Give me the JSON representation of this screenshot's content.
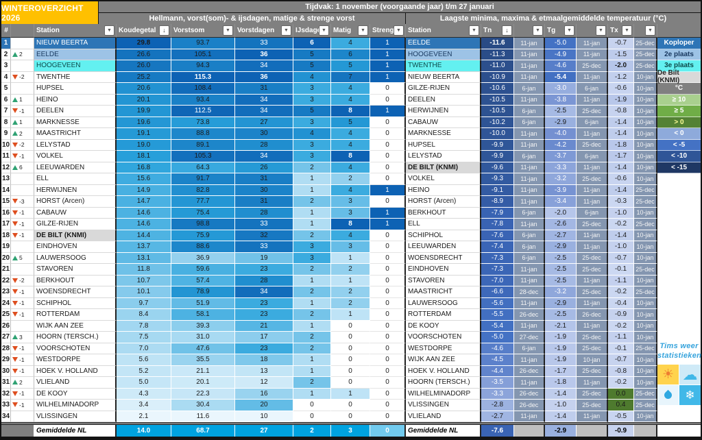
{
  "title": "WINTEROVERZICHT 2026",
  "period_bar": "Tijdvak: 1 november (voorgaande jaar) t/m 27 januari",
  "left": {
    "section_title": "Hellmann, vorst(som)- & ijsdagen, matige & strenge vorst",
    "columns": [
      {
        "label": "#",
        "btn": null
      },
      {
        "label": "",
        "btn": null
      },
      {
        "label": "Station",
        "btn": "filter"
      },
      {
        "label": "Koudegetal",
        "btn": "sort"
      },
      {
        "label": "Vorstsom",
        "btn": "filter"
      },
      {
        "label": "Vorstdagen",
        "btn": "filter"
      },
      {
        "label": "IJsdagen",
        "btn": "filter"
      },
      {
        "label": "Matig",
        "btn": "filter"
      },
      {
        "label": "Streng",
        "btn": "filter"
      }
    ],
    "rows": [
      {
        "rank": 1,
        "change": null,
        "station": "NIEUW BEERTA",
        "koudegetal": 29.8,
        "vorstsom": 93.7,
        "vorstdagen": 33,
        "ijsdagen": 6,
        "matig": 4,
        "streng": 1,
        "hl": 1
      },
      {
        "rank": 2,
        "change": 2,
        "station": "EELDE",
        "koudegetal": 26.6,
        "vorstsom": 105.1,
        "vorstdagen": 36,
        "ijsdagen": 5,
        "matig": 6,
        "streng": 1,
        "hl": 2
      },
      {
        "rank": 3,
        "change": null,
        "station": "HOOGEVEEN",
        "koudegetal": 26.0,
        "vorstsom": 94.3,
        "vorstdagen": 34,
        "ijsdagen": 5,
        "matig": 5,
        "streng": 1,
        "hl": 3
      },
      {
        "rank": 4,
        "change": -2,
        "station": "TWENTHE",
        "koudegetal": 25.2,
        "vorstsom": 115.3,
        "vorstdagen": 36,
        "ijsdagen": 4,
        "matig": 7,
        "streng": 1,
        "hl": null
      },
      {
        "rank": 5,
        "change": null,
        "station": "HUPSEL",
        "koudegetal": 20.6,
        "vorstsom": 108.4,
        "vorstdagen": 31,
        "ijsdagen": 3,
        "matig": 4,
        "streng": 0,
        "hl": null
      },
      {
        "rank": 6,
        "change": 1,
        "station": "HEINO",
        "koudegetal": 20.1,
        "vorstsom": 93.4,
        "vorstdagen": 34,
        "ijsdagen": 3,
        "matig": 4,
        "streng": 0,
        "hl": null
      },
      {
        "rank": 7,
        "change": -1,
        "station": "DEELEN",
        "koudegetal": 19.9,
        "vorstsom": 112.5,
        "vorstdagen": 34,
        "ijsdagen": 5,
        "matig": 8,
        "streng": 1,
        "hl": null
      },
      {
        "rank": 8,
        "change": 1,
        "station": "MARKNESSE",
        "koudegetal": 19.6,
        "vorstsom": 73.8,
        "vorstdagen": 27,
        "ijsdagen": 3,
        "matig": 5,
        "streng": 0,
        "hl": null
      },
      {
        "rank": 9,
        "change": 2,
        "station": "MAASTRICHT",
        "koudegetal": 19.1,
        "vorstsom": 88.8,
        "vorstdagen": 30,
        "ijsdagen": 4,
        "matig": 4,
        "streng": 0,
        "hl": null
      },
      {
        "rank": 10,
        "change": -2,
        "station": "LELYSTAD",
        "koudegetal": 19.0,
        "vorstsom": 89.1,
        "vorstdagen": 28,
        "ijsdagen": 3,
        "matig": 4,
        "streng": 0,
        "hl": null
      },
      {
        "rank": 11,
        "change": -1,
        "station": "VOLKEL",
        "koudegetal": 18.1,
        "vorstsom": 105.3,
        "vorstdagen": 34,
        "ijsdagen": 3,
        "matig": 8,
        "streng": 0,
        "hl": null
      },
      {
        "rank": 12,
        "change": 6,
        "station": "LEEUWARDEN",
        "koudegetal": 16.8,
        "vorstsom": 64.3,
        "vorstdagen": 26,
        "ijsdagen": 2,
        "matig": 4,
        "streng": 0,
        "hl": null
      },
      {
        "rank": 13,
        "change": null,
        "station": "ELL",
        "koudegetal": 15.6,
        "vorstsom": 91.7,
        "vorstdagen": 31,
        "ijsdagen": 1,
        "matig": 2,
        "streng": 0,
        "hl": null
      },
      {
        "rank": 14,
        "change": null,
        "station": "HERWIJNEN",
        "koudegetal": 14.9,
        "vorstsom": 82.8,
        "vorstdagen": 30,
        "ijsdagen": 1,
        "matig": 4,
        "streng": 1,
        "hl": null
      },
      {
        "rank": 15,
        "change": -3,
        "station": "HORST (Arcen)",
        "koudegetal": 14.7,
        "vorstsom": 77.7,
        "vorstdagen": 31,
        "ijsdagen": 2,
        "matig": 3,
        "streng": 0,
        "hl": null
      },
      {
        "rank": 16,
        "change": -1,
        "station": "CABAUW",
        "koudegetal": 14.6,
        "vorstsom": 75.4,
        "vorstdagen": 28,
        "ijsdagen": 1,
        "matig": 3,
        "streng": 1,
        "hl": null
      },
      {
        "rank": 17,
        "change": -1,
        "station": "GILZE-RIJEN",
        "koudegetal": 14.6,
        "vorstsom": 98.8,
        "vorstdagen": 33,
        "ijsdagen": 1,
        "matig": 8,
        "streng": 1,
        "hl": null
      },
      {
        "rank": 18,
        "change": -1,
        "station": "DE BILT (KNMI)",
        "koudegetal": 14.4,
        "vorstsom": 75.9,
        "vorstdagen": 32,
        "ijsdagen": 2,
        "matig": 4,
        "streng": 0,
        "hl": "d"
      },
      {
        "rank": 19,
        "change": null,
        "station": "EINDHOVEN",
        "koudegetal": 13.7,
        "vorstsom": 88.6,
        "vorstdagen": 33,
        "ijsdagen": 3,
        "matig": 3,
        "streng": 0,
        "hl": null
      },
      {
        "rank": 20,
        "change": 5,
        "station": "LAUWERSOOG",
        "koudegetal": 13.1,
        "vorstsom": 36.9,
        "vorstdagen": 19,
        "ijsdagen": 3,
        "matig": 1,
        "streng": 0,
        "hl": null
      },
      {
        "rank": 21,
        "change": null,
        "station": "STAVOREN",
        "koudegetal": 11.8,
        "vorstsom": 59.6,
        "vorstdagen": 23,
        "ijsdagen": 2,
        "matig": 2,
        "streng": 0,
        "hl": null
      },
      {
        "rank": 22,
        "change": -2,
        "station": "BERKHOUT",
        "koudegetal": 10.7,
        "vorstsom": 57.4,
        "vorstdagen": 28,
        "ijsdagen": 1,
        "matig": 1,
        "streng": 0,
        "hl": null
      },
      {
        "rank": 23,
        "change": -1,
        "station": "WOENSDRECHT",
        "koudegetal": 10.1,
        "vorstsom": 78.9,
        "vorstdagen": 34,
        "ijsdagen": 2,
        "matig": 2,
        "streng": 0,
        "hl": null
      },
      {
        "rank": 24,
        "change": -1,
        "station": "SCHIPHOL",
        "koudegetal": 9.7,
        "vorstsom": 51.9,
        "vorstdagen": 23,
        "ijsdagen": 1,
        "matig": 2,
        "streng": 0,
        "hl": null
      },
      {
        "rank": 25,
        "change": -1,
        "station": "ROTTERDAM",
        "koudegetal": 8.4,
        "vorstsom": 58.1,
        "vorstdagen": 23,
        "ijsdagen": 2,
        "matig": 1,
        "streng": 0,
        "hl": null
      },
      {
        "rank": 26,
        "change": null,
        "station": "WIJK AAN ZEE",
        "koudegetal": 7.8,
        "vorstsom": 39.3,
        "vorstdagen": 21,
        "ijsdagen": 1,
        "matig": 0,
        "streng": 0,
        "hl": null
      },
      {
        "rank": 27,
        "change": 3,
        "station": "HOORN (TERSCH.)",
        "koudegetal": 7.5,
        "vorstsom": 31.0,
        "vorstdagen": 17,
        "ijsdagen": 2,
        "matig": 0,
        "streng": 0,
        "hl": null
      },
      {
        "rank": 28,
        "change": -1,
        "station": "VOORSCHOTEN",
        "koudegetal": 7.0,
        "vorstsom": 47.6,
        "vorstdagen": 23,
        "ijsdagen": 2,
        "matig": 0,
        "streng": 0,
        "hl": null
      },
      {
        "rank": 29,
        "change": -1,
        "station": "WESTDORPE",
        "koudegetal": 5.6,
        "vorstsom": 35.5,
        "vorstdagen": 18,
        "ijsdagen": 1,
        "matig": 0,
        "streng": 0,
        "hl": null
      },
      {
        "rank": 30,
        "change": -1,
        "station": "HOEK V. HOLLAND",
        "koudegetal": 5.2,
        "vorstsom": 21.1,
        "vorstdagen": 13,
        "ijsdagen": 1,
        "matig": 0,
        "streng": 0,
        "hl": null
      },
      {
        "rank": 31,
        "change": 2,
        "station": "VLIELAND",
        "koudegetal": 5.0,
        "vorstsom": 20.1,
        "vorstdagen": 12,
        "ijsdagen": 2,
        "matig": 0,
        "streng": 0,
        "hl": null
      },
      {
        "rank": 32,
        "change": -1,
        "station": "DE KOOY",
        "koudegetal": 4.3,
        "vorstsom": 22.3,
        "vorstdagen": 16,
        "ijsdagen": 1,
        "matig": 1,
        "streng": 0,
        "hl": null
      },
      {
        "rank": 33,
        "change": -1,
        "station": "WILHELMINADORP",
        "koudegetal": 3.4,
        "vorstsom": 30.4,
        "vorstdagen": 20,
        "ijsdagen": 0,
        "matig": 0,
        "streng": 0,
        "hl": null
      },
      {
        "rank": 34,
        "change": null,
        "station": "VLISSINGEN",
        "koudegetal": 2.1,
        "vorstsom": 11.6,
        "vorstdagen": 10,
        "ijsdagen": 0,
        "matig": 0,
        "streng": 0,
        "hl": null
      }
    ],
    "footer": {
      "label": "Gemiddelde NL",
      "koudegetal": 14.0,
      "vorstsom": 68.7,
      "vorstdagen": 27,
      "ijsdagen": 2,
      "matig": 3,
      "streng": 0
    }
  },
  "right": {
    "section_title": "Laagste minima, maxima & etmaalgemiddelde temperatuur (°C)",
    "columns": [
      {
        "label": "Station",
        "btn": "filter"
      },
      {
        "label": "Tn",
        "btn": "sort"
      },
      {
        "label": "",
        "btn": "filter"
      },
      {
        "label": "Tg",
        "btn": "filter"
      },
      {
        "label": "",
        "btn": "filter"
      },
      {
        "label": "Tx",
        "btn": "filter"
      },
      {
        "label": "",
        "btn": "filter"
      }
    ],
    "rows": [
      {
        "station": "EELDE",
        "tn": -11.6,
        "tn_date": "11-jan",
        "tg": -5.0,
        "tg_date": "11-jan",
        "tx": -0.7,
        "tx_date": "25-dec",
        "hl": 1
      },
      {
        "station": "HOOGEVEEN",
        "tn": -11.3,
        "tn_date": "11-jan",
        "tg": -4.9,
        "tg_date": "11-jan",
        "tx": -1.5,
        "tx_date": "25-dec",
        "hl": 2
      },
      {
        "station": "TWENTHE",
        "tn": -11.0,
        "tn_date": "11-jan",
        "tg": -4.6,
        "tg_date": "25-dec",
        "tx": -2.0,
        "tx_date": "25-dec",
        "hl": 3
      },
      {
        "station": "NIEUW BEERTA",
        "tn": -10.9,
        "tn_date": "11-jan",
        "tg": -5.4,
        "tg_date": "11-jan",
        "tx": -1.2,
        "tx_date": "10-jan",
        "hl": null
      },
      {
        "station": "GILZE-RIJEN",
        "tn": -10.6,
        "tn_date": "6-jan",
        "tg": -3.0,
        "tg_date": "6-jan",
        "tx": -0.6,
        "tx_date": "10-jan",
        "hl": null
      },
      {
        "station": "DEELEN",
        "tn": -10.5,
        "tn_date": "11-jan",
        "tg": -3.8,
        "tg_date": "11-jan",
        "tx": -1.9,
        "tx_date": "10-jan",
        "hl": null
      },
      {
        "station": "HERWIJNEN",
        "tn": -10.5,
        "tn_date": "6-jan",
        "tg": -2.5,
        "tg_date": "25-dec",
        "tx": -0.8,
        "tx_date": "10-jan",
        "hl": null
      },
      {
        "station": "CABAUW",
        "tn": -10.2,
        "tn_date": "6-jan",
        "tg": -2.9,
        "tg_date": "6-jan",
        "tx": -1.4,
        "tx_date": "10-jan",
        "hl": null
      },
      {
        "station": "MARKNESSE",
        "tn": -10.0,
        "tn_date": "11-jan",
        "tg": -4.0,
        "tg_date": "11-jan",
        "tx": -1.4,
        "tx_date": "10-jan",
        "hl": null
      },
      {
        "station": "HUPSEL",
        "tn": -9.9,
        "tn_date": "11-jan",
        "tg": -4.2,
        "tg_date": "25-dec",
        "tx": -1.8,
        "tx_date": "10-jan",
        "hl": null
      },
      {
        "station": "LELYSTAD",
        "tn": -9.9,
        "tn_date": "6-jan",
        "tg": -3.7,
        "tg_date": "6-jan",
        "tx": -1.7,
        "tx_date": "10-jan",
        "hl": null
      },
      {
        "station": "DE BILT (KNMI)",
        "tn": -9.6,
        "tn_date": "11-jan",
        "tg": -3.3,
        "tg_date": "11-jan",
        "tx": -1.4,
        "tx_date": "10-jan",
        "hl": "d"
      },
      {
        "station": "VOLKEL",
        "tn": -9.3,
        "tn_date": "11-jan",
        "tg": -3.2,
        "tg_date": "25-dec",
        "tx": -0.6,
        "tx_date": "10-jan",
        "hl": null
      },
      {
        "station": "HEINO",
        "tn": -9.1,
        "tn_date": "11-jan",
        "tg": -3.9,
        "tg_date": "11-jan",
        "tx": -1.4,
        "tx_date": "25-dec",
        "hl": null
      },
      {
        "station": "HORST (Arcen)",
        "tn": -8.9,
        "tn_date": "11-jan",
        "tg": -3.4,
        "tg_date": "11-jan",
        "tx": -0.3,
        "tx_date": "25-dec",
        "hl": null
      },
      {
        "station": "BERKHOUT",
        "tn": -7.9,
        "tn_date": "6-jan",
        "tg": -2.0,
        "tg_date": "6-jan",
        "tx": -1.0,
        "tx_date": "10-jan",
        "hl": null
      },
      {
        "station": "ELL",
        "tn": -7.8,
        "tn_date": "11-jan",
        "tg": -2.6,
        "tg_date": "25-dec",
        "tx": -0.2,
        "tx_date": "25-dec",
        "hl": null
      },
      {
        "station": "SCHIPHOL",
        "tn": -7.6,
        "tn_date": "6-jan",
        "tg": -2.7,
        "tg_date": "11-jan",
        "tx": -1.4,
        "tx_date": "10-jan",
        "hl": null
      },
      {
        "station": "LEEUWARDEN",
        "tn": -7.4,
        "tn_date": "6-jan",
        "tg": -2.9,
        "tg_date": "11-jan",
        "tx": -1.0,
        "tx_date": "10-jan",
        "hl": null
      },
      {
        "station": "WOENSDRECHT",
        "tn": -7.3,
        "tn_date": "6-jan",
        "tg": -2.5,
        "tg_date": "25-dec",
        "tx": -0.7,
        "tx_date": "10-jan",
        "hl": null
      },
      {
        "station": "EINDHOVEN",
        "tn": -7.3,
        "tn_date": "11-jan",
        "tg": -2.5,
        "tg_date": "25-dec",
        "tx": -0.1,
        "tx_date": "25-dec",
        "hl": null
      },
      {
        "station": "STAVOREN",
        "tn": -7.0,
        "tn_date": "11-jan",
        "tg": -2.5,
        "tg_date": "11-jan",
        "tx": -1.1,
        "tx_date": "10-jan",
        "hl": null
      },
      {
        "station": "MAASTRICHT",
        "tn": -6.6,
        "tn_date": "28-dec",
        "tg": -3.2,
        "tg_date": "25-dec",
        "tx": -0.2,
        "tx_date": "25-dec",
        "hl": null
      },
      {
        "station": "LAUWERSOOG",
        "tn": -5.6,
        "tn_date": "11-jan",
        "tg": -2.9,
        "tg_date": "11-jan",
        "tx": -0.4,
        "tx_date": "10-jan",
        "hl": null
      },
      {
        "station": "ROTTERDAM",
        "tn": -5.5,
        "tn_date": "26-dec",
        "tg": -2.5,
        "tg_date": "26-dec",
        "tx": -0.9,
        "tx_date": "10-jan",
        "hl": null
      },
      {
        "station": "DE KOOY",
        "tn": -5.4,
        "tn_date": "11-jan",
        "tg": -2.1,
        "tg_date": "11-jan",
        "tx": -0.2,
        "tx_date": "10-jan",
        "hl": null
      },
      {
        "station": "VOORSCHOTEN",
        "tn": -5.0,
        "tn_date": "27-dec",
        "tg": -1.9,
        "tg_date": "25-dec",
        "tx": -1.1,
        "tx_date": "10-jan",
        "hl": null
      },
      {
        "station": "WESTDORPE",
        "tn": -4.6,
        "tn_date": "6-jan",
        "tg": -1.9,
        "tg_date": "25-dec",
        "tx": -0.1,
        "tx_date": "25-dec",
        "hl": null
      },
      {
        "station": "WIJK AAN ZEE",
        "tn": -4.5,
        "tn_date": "11-jan",
        "tg": -1.9,
        "tg_date": "10-jan",
        "tx": -0.7,
        "tx_date": "10-jan",
        "hl": null
      },
      {
        "station": "HOEK V. HOLLAND",
        "tn": -4.4,
        "tn_date": "26-dec",
        "tg": -1.7,
        "tg_date": "25-dec",
        "tx": -0.8,
        "tx_date": "10-jan",
        "hl": null
      },
      {
        "station": "HOORN (TERSCH.)",
        "tn": -3.5,
        "tn_date": "11-jan",
        "tg": -1.8,
        "tg_date": "11-jan",
        "tx": -0.2,
        "tx_date": "10-jan",
        "hl": null
      },
      {
        "station": "WILHELMINADORP",
        "tn": -3.3,
        "tn_date": "26-dec",
        "tg": -1.4,
        "tg_date": "25-dec",
        "tx": 0.0,
        "tx_date": "25-dec",
        "hl": null
      },
      {
        "station": "VLISSINGEN",
        "tn": -2.8,
        "tn_date": "26-dec",
        "tg": -1.0,
        "tg_date": "25-dec",
        "tx": 0.4,
        "tx_date": "25-dec",
        "hl": null
      },
      {
        "station": "VLIELAND",
        "tn": -2.7,
        "tn_date": "11-jan",
        "tg": -1.4,
        "tg_date": "11-jan",
        "tx": -0.5,
        "tx_date": "10-jan",
        "hl": null
      }
    ],
    "footer": {
      "label": "Gemiddelde NL",
      "tn": -7.6,
      "tg": -2.9,
      "tx": -0.9
    }
  },
  "legend": {
    "items": [
      {
        "label": "Koploper",
        "bg": "#2E75B6",
        "fg": "#FFFFFF"
      },
      {
        "label": "2e plaats",
        "bg": "#9DC3E6",
        "fg": "#17375E"
      },
      {
        "label": "3e plaats",
        "bg": "#63F0F0",
        "fg": "#0D4A4A"
      },
      {
        "label": "De Bilt (KNMI)",
        "bg": "#D9D9D9",
        "fg": "#262626"
      },
      {
        "label": "°C",
        "bg": "#808080",
        "fg": "#FFFFFF"
      },
      {
        "label": "≥ 10",
        "bg": "#A9D08E",
        "fg": "#FFFFFF"
      },
      {
        "label": "≥ 5",
        "bg": "#70AD47",
        "fg": "#FFFFFF"
      },
      {
        "label": "> 0",
        "bg": "#548235",
        "fg": "#FFFF99"
      },
      {
        "label": "< 0",
        "bg": "#8EAADB",
        "fg": "#FFFFFF"
      },
      {
        "label": "< -5",
        "bg": "#4472C4",
        "fg": "#FFFFFF"
      },
      {
        "label": "< -10",
        "bg": "#2F5597",
        "fg": "#FFFFFF"
      },
      {
        "label": "< -15",
        "bg": "#1F3864",
        "fg": "#FFFFFF"
      }
    ]
  },
  "logo": {
    "line1": "Tims weer",
    "line2": "statistieken",
    "icons": [
      {
        "name": "sun-icon",
        "tile": "#FFD34D",
        "glyph_color": "#ED7D31"
      },
      {
        "name": "cloud-icon",
        "tile": "#CFEAF7",
        "glyph_color": "#41B8E8"
      },
      {
        "name": "droplet-icon",
        "tile": "#E8F5FC",
        "glyph_color": "#2FA8E1"
      },
      {
        "name": "snowflake-icon",
        "tile": "#41B8E8",
        "glyph_color": "#FFFFFF"
      }
    ]
  },
  "colors": {
    "title_bg": "#FFC000",
    "bar_bg": "#808080",
    "footer_value_bg": "#00A3E0",
    "footer_streng_bg": "#72CBEF",
    "date_cell_bg": "#8496B0",
    "positive_tx_bg": "#4E7A2E",
    "blank_footer_bg": "#BFBFBF"
  }
}
